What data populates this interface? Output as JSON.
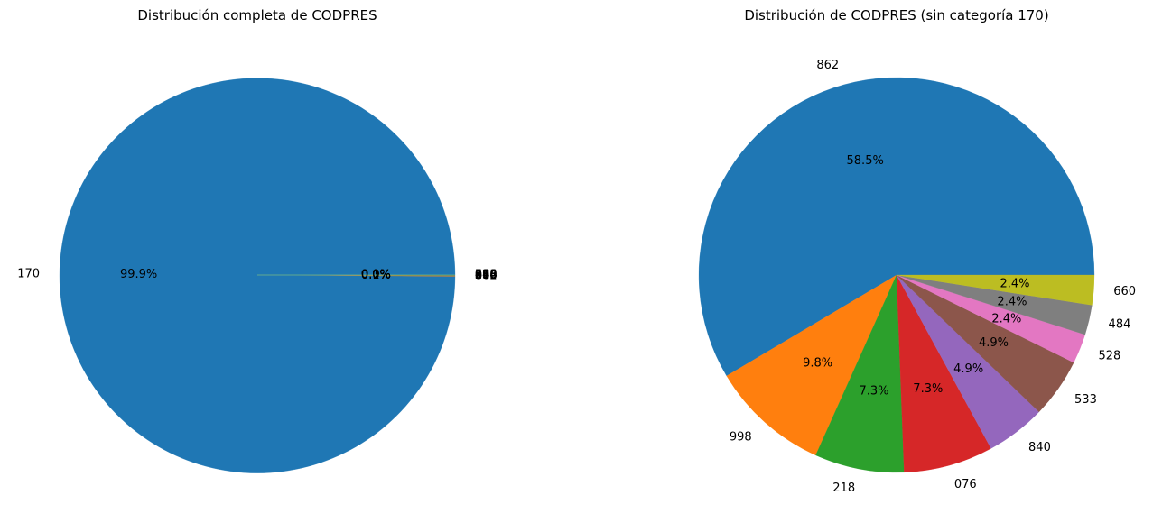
{
  "chart_data": [
    {
      "type": "pie",
      "title": "Distribución completa de CODPRES",
      "labels": [
        "170",
        "862",
        "998",
        "218",
        "076",
        "840",
        "533",
        "528",
        "484",
        "660"
      ],
      "values": [
        41000,
        24,
        4,
        3,
        3,
        2,
        2,
        1,
        1,
        1
      ],
      "percent_labels": [
        "99.9%",
        "0.1%",
        "0.0%",
        "0.0%",
        "0.0%",
        "0.0%",
        "0.0%",
        "0.0%",
        "0.0%",
        "0.0%"
      ],
      "colors": [
        "#1f77b4",
        "#ff7f0e",
        "#2ca02c",
        "#d62728",
        "#9467bd",
        "#8c564b",
        "#e377c2",
        "#7f7f7f",
        "#bcbd22",
        "#17becf"
      ]
    },
    {
      "type": "pie",
      "title": "Distribución de CODPRES (sin categoría 170)",
      "labels": [
        "862",
        "998",
        "218",
        "076",
        "840",
        "533",
        "528",
        "484",
        "660"
      ],
      "values": [
        24,
        4,
        3,
        3,
        2,
        2,
        1,
        1,
        1
      ],
      "percent_labels": [
        "58.5%",
        "9.8%",
        "7.3%",
        "7.3%",
        "4.9%",
        "4.9%",
        "2.4%",
        "2.4%",
        "2.4%"
      ],
      "colors": [
        "#1f77b4",
        "#ff7f0e",
        "#2ca02c",
        "#d62728",
        "#9467bd",
        "#8c564b",
        "#e377c2",
        "#7f7f7f",
        "#bcbd22"
      ]
    }
  ]
}
